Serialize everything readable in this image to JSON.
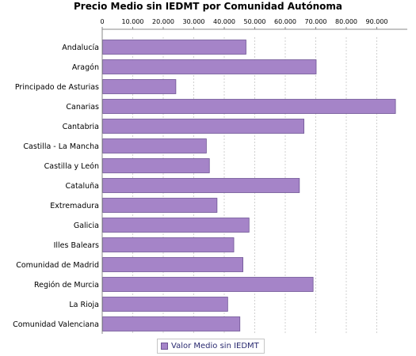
{
  "chart_data": {
    "type": "bar",
    "orientation": "horizontal",
    "title": "Precio Medio sin IEDMT por Comunidad Autónoma",
    "categories": [
      "Andalucía",
      "Aragón",
      "Principado de Asturias",
      "Canarias",
      "Cantabria",
      "Castilla - La Mancha",
      "Castilla y León",
      "Cataluña",
      "Extremadura",
      "Galicia",
      "Illes Balears",
      "Comunidad de Madrid",
      "Región de Murcia",
      "La Rioja",
      "Comunidad Valenciana"
    ],
    "series": [
      {
        "name": "Valor Medio sin IEDMT",
        "values": [
          47000,
          70000,
          24000,
          96000,
          66000,
          34000,
          35000,
          64500,
          37500,
          48000,
          43000,
          46000,
          69000,
          41000,
          45000
        ]
      }
    ],
    "xlim": [
      0,
      100000
    ],
    "xticks": [
      0,
      10000,
      20000,
      30000,
      40000,
      50000,
      60000,
      70000,
      80000,
      90000
    ],
    "xtick_labels": [
      "0",
      "10.000",
      "20.000",
      "30.000",
      "40.000",
      "50.000",
      "60.000",
      "70.000",
      "80.000",
      "90.000"
    ],
    "xlabel": "",
    "ylabel": "",
    "grid": true,
    "legend": "bottom",
    "colors": {
      "bar": "#a584c8",
      "bar_border": "#6e5595",
      "grid": "#d0d0d0",
      "axis": "#888888"
    }
  },
  "legend": {
    "label": "Valor Medio sin IEDMT"
  }
}
